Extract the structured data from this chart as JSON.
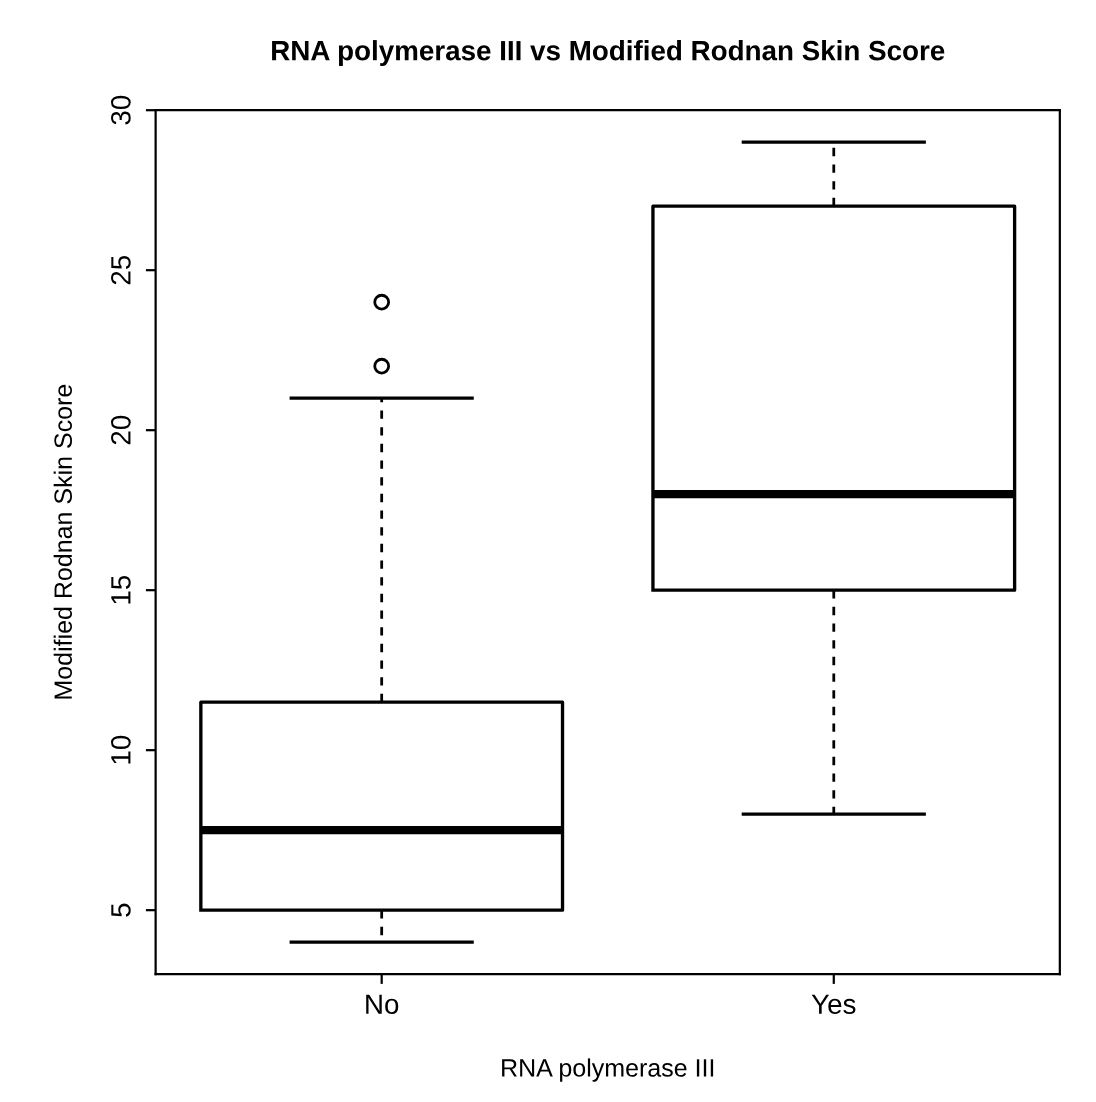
{
  "chart_data": {
    "type": "box",
    "title": "RNA polymerase III vs Modified Rodnan Skin Score",
    "xlabel": "RNA polymerase III",
    "ylabel": "Modified Rodnan Skin Score",
    "categories": [
      "No",
      "Yes"
    ],
    "boxes": [
      {
        "low": 4,
        "q1": 5,
        "median": 7.5,
        "q3": 11.5,
        "high": 21,
        "outliers": [
          22,
          24
        ]
      },
      {
        "low": 8,
        "q1": 15,
        "median": 18,
        "q3": 27,
        "high": 29
      }
    ],
    "ylim": [
      3,
      30
    ],
    "yticks": [
      5,
      10,
      15,
      20,
      25,
      30
    ],
    "grid": false,
    "legend": false
  }
}
